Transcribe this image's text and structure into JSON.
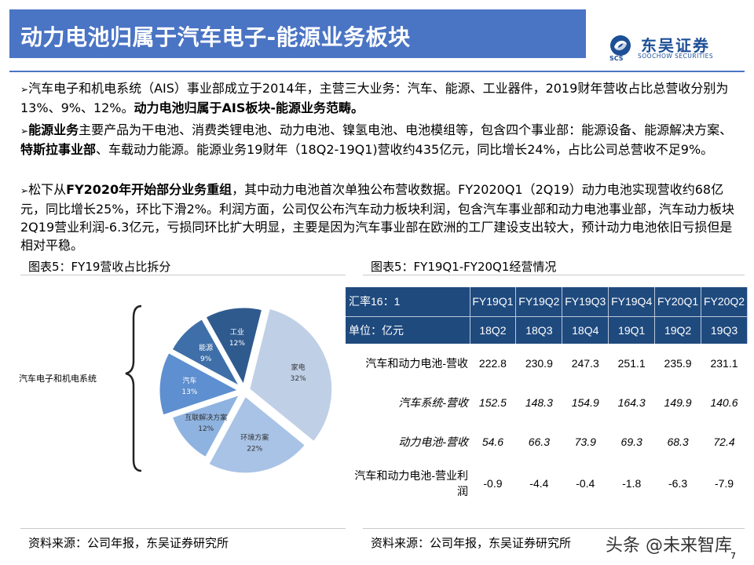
{
  "slide_title": "动力电池归属于汽车电子-能源业务板块",
  "logo": {
    "cn": "东吴证券",
    "en": "SOOCHOW SECURITIES",
    "scs": "SCS"
  },
  "bullets": [
    {
      "arrow": "➢",
      "parts": [
        {
          "text": "汽车电子和机电系统（AIS）事业部成立于2014年，主营三大业务：汽车、能源、工业器件，2019财年营收占比总营收分别为13%、9%、12%。",
          "bold": false
        },
        {
          "text": "动力电池归属于AIS板块-能源业务范畴。",
          "bold": true
        }
      ]
    },
    {
      "arrow": "➢",
      "parts": [
        {
          "text": "能源业务",
          "bold": true
        },
        {
          "text": "主要产品为干电池、消费类锂电池、动力电池、镍氢电池、电池模组等，包含四个事业部：能源设备、能源解决方案、",
          "bold": false
        },
        {
          "text": "特斯拉事业部",
          "bold": true
        },
        {
          "text": "、车载动力能源。能源业务19财年（18Q2-19Q1)营收约435亿元，同比增长24%，占比公司总营收不足9%。",
          "bold": false
        }
      ]
    },
    {
      "arrow": "➢",
      "parts": [
        {
          "text": "松下从",
          "bold": false
        },
        {
          "text": "FY2020年开始部分业务重组",
          "bold": true
        },
        {
          "text": "，其中动力电池首次单独公布营收数据。FY2020Q1（2Q19）动力电池实现营收约68亿元，同比增长25%，环比下滑2%。利润方面，公司仅公布汽车动力板块利润，包含汽车事业部和动力电池事业部，汽车动力板块2Q19营业利润-6.3亿元，亏损同环比扩大明显，主要是因为汽车事业部在欧洲的工厂建设支出较大，预计动力电池依旧亏损但是相对平稳。",
          "bold": false
        }
      ]
    }
  ],
  "left_caption": "图表5：FY19营收占比拆分",
  "right_caption": "图表5：FY19Q1-FY20Q1经营情况",
  "chart_data": {
    "type": "pie",
    "group_label": "汽车电子和机电系统",
    "slices": [
      {
        "name": "家电",
        "value": 32,
        "label": "32%",
        "color": "#bfcfe6"
      },
      {
        "name": "环境方案",
        "value": 22,
        "label": "22%",
        "color": "#a8c3e6"
      },
      {
        "name": "互联解决方案",
        "value": 12,
        "label": "12%",
        "color": "#8fb3e0"
      },
      {
        "name": "汽车",
        "value": 13,
        "label": "13%",
        "color": "#5e8fd0"
      },
      {
        "name": "能源",
        "value": 9,
        "label": "9%",
        "color": "#3e6fa8"
      },
      {
        "name": "工业",
        "value": 12,
        "label": "12%",
        "color": "#2f5a8e"
      }
    ]
  },
  "table": {
    "header_row1": [
      "汇率16：1",
      "FY19Q1",
      "FY19Q2",
      "FY19Q3",
      "FY19Q4",
      "FY20Q1",
      "FY20Q2"
    ],
    "header_row2": [
      "单位：亿元",
      "18Q2",
      "18Q3",
      "18Q4",
      "19Q1",
      "19Q2",
      "19Q3"
    ],
    "rows": [
      {
        "label": "汽车和动力电池-营收",
        "values": [
          "222.8",
          "230.9",
          "247.3",
          "251.1",
          "235.9",
          "231.1"
        ],
        "italic": false
      },
      {
        "label": "汽车系统-营收",
        "values": [
          "152.5",
          "148.3",
          "154.9",
          "164.3",
          "149.9",
          "140.6"
        ],
        "italic": true
      },
      {
        "label": "动力电池-营收",
        "values": [
          "54.6",
          "66.3",
          "73.9",
          "69.3",
          "68.3",
          "72.4"
        ],
        "italic": true
      },
      {
        "label": "汽车和动力电池-营业利润",
        "values": [
          "-0.9",
          "-4.4",
          "-0.4",
          "-1.8",
          "-6.3",
          "-7.9"
        ],
        "italic": false
      }
    ]
  },
  "source_left": "资料来源：公司年报，东吴证券研究所",
  "source_right": "资料来源：公司年报，东吴证券研究所",
  "watermark": "头条 @未来智库",
  "page_number": "7"
}
